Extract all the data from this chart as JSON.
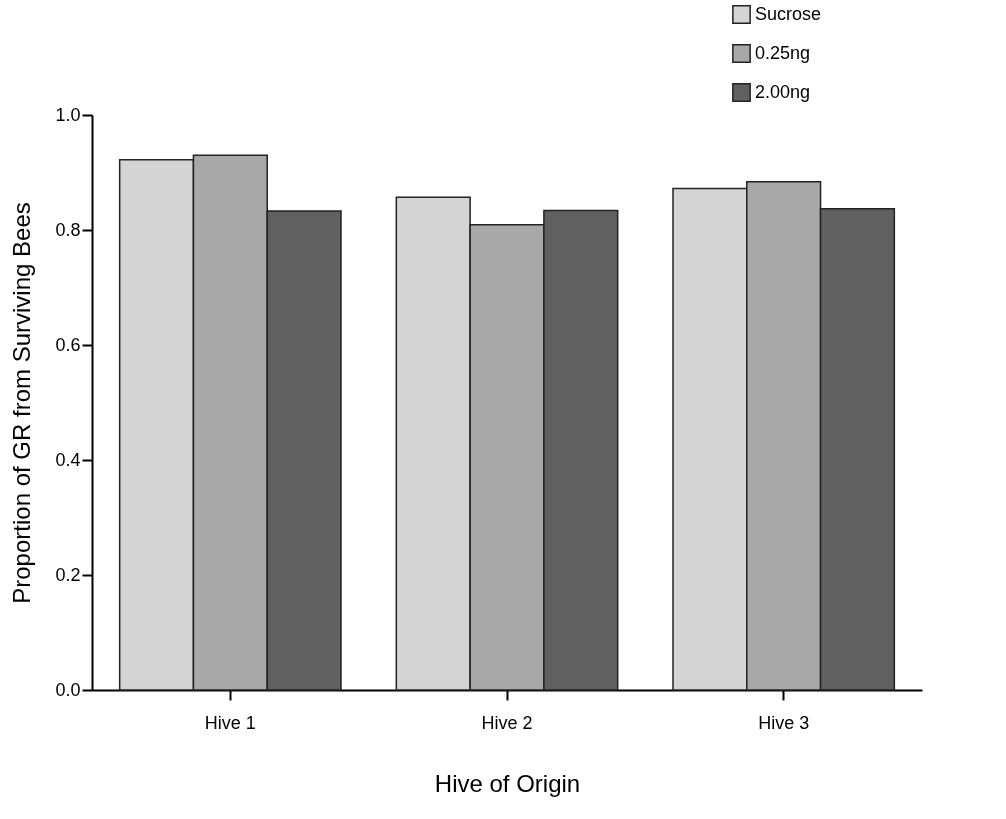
{
  "chart_data": {
    "type": "bar",
    "xlabel": "Hive of Origin",
    "ylabel": "Proportion of GR from Surviving Bees",
    "categories": [
      "Hive 1",
      "Hive 2",
      "Hive 3"
    ],
    "series": [
      {
        "name": "Sucrose",
        "color": "#d4d4d4",
        "values": [
          0.922,
          0.857,
          0.872
        ]
      },
      {
        "name": "0.25ng",
        "color": "#a8a8a8",
        "values": [
          0.93,
          0.809,
          0.884
        ]
      },
      {
        "name": "2.00ng",
        "color": "#606060",
        "values": [
          0.833,
          0.834,
          0.837
        ]
      }
    ],
    "ylim": [
      0,
      1
    ],
    "yticks": [
      {
        "value": 0,
        "label": "0.0"
      },
      {
        "value": 0.2,
        "label": "0.2"
      },
      {
        "value": 0.4,
        "label": "0.4"
      },
      {
        "value": 0.6,
        "label": "0.6"
      },
      {
        "value": 0.8,
        "label": "0.8"
      },
      {
        "value": 1,
        "label": "1.0"
      }
    ],
    "grid": false,
    "legend": "top right"
  }
}
